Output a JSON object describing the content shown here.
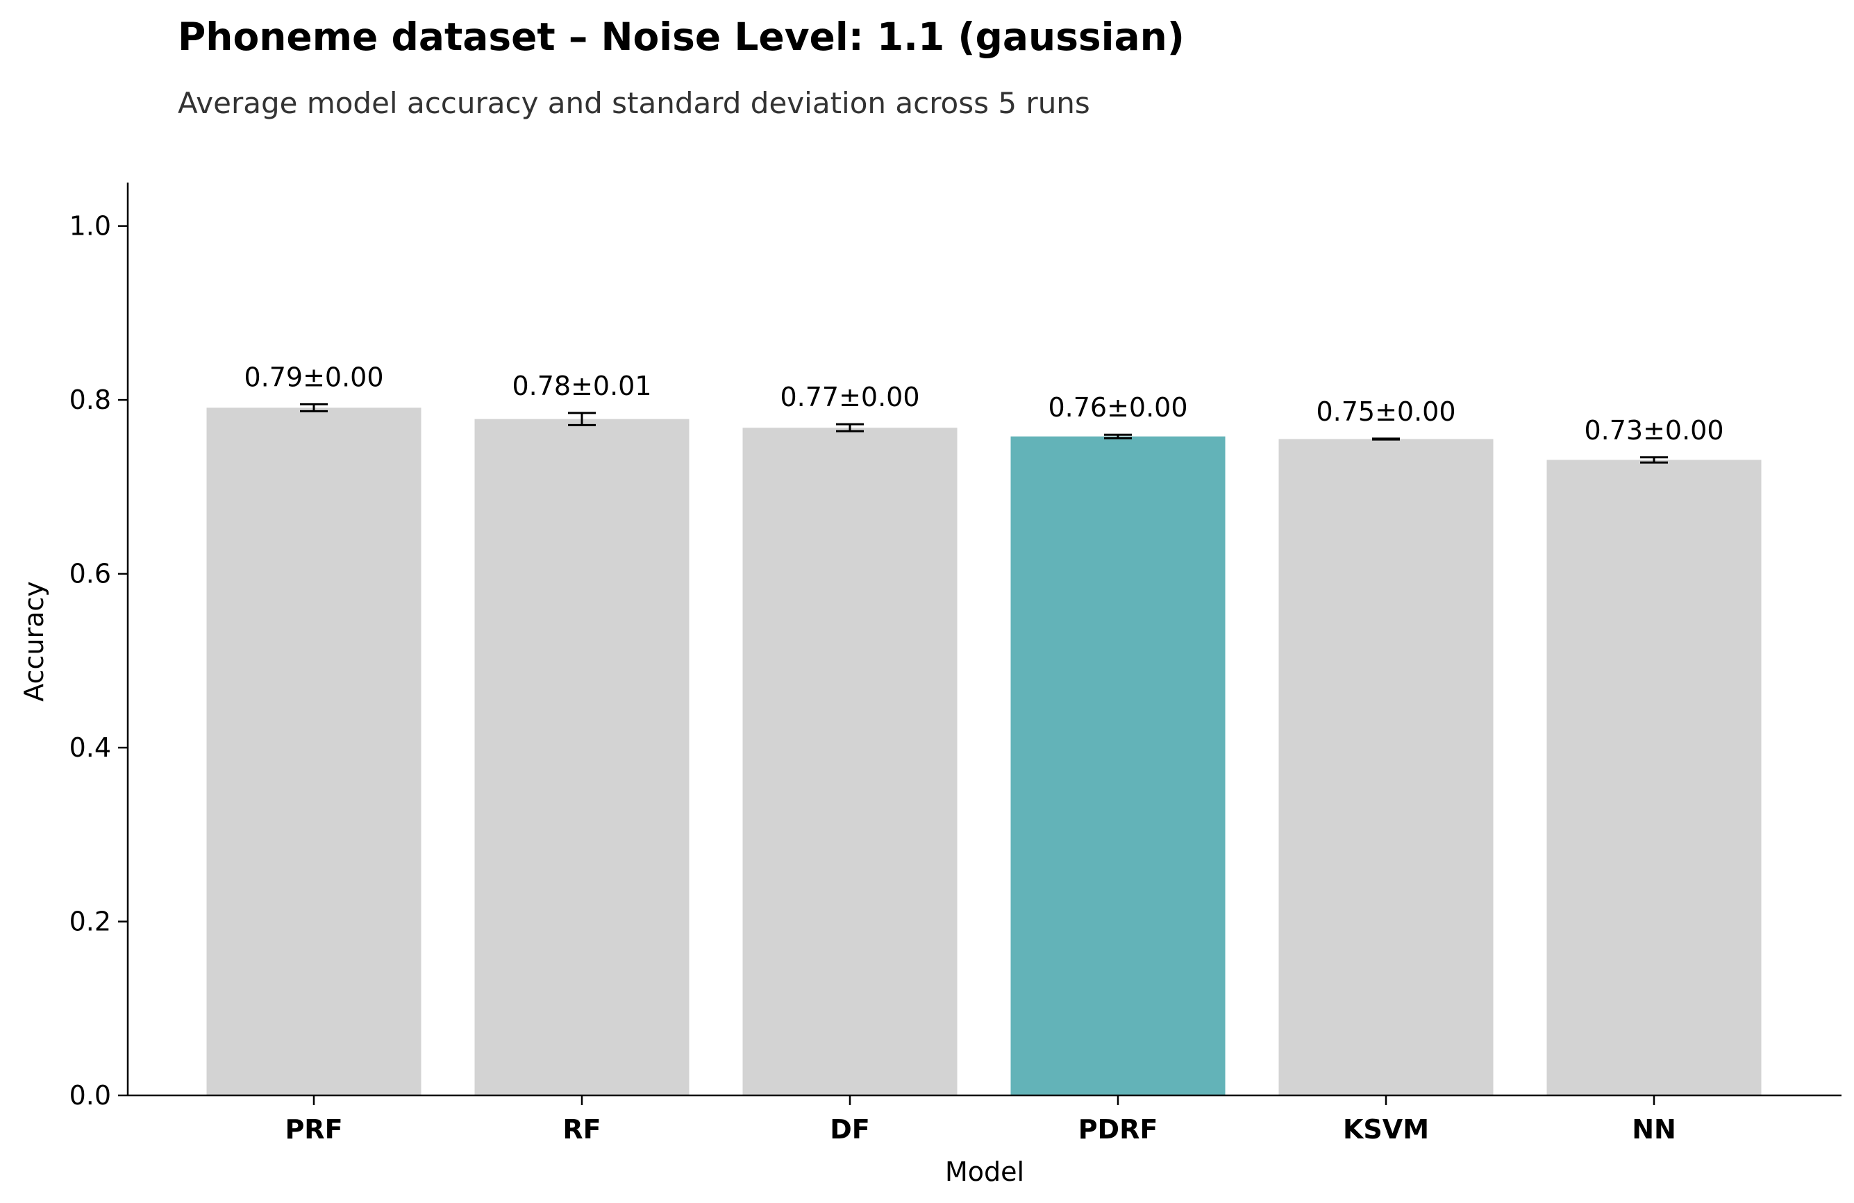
{
  "chart_data": {
    "type": "bar",
    "title": "Phoneme dataset – Noise Level: 1.1 (gaussian)",
    "subtitle": "Average model accuracy and standard deviation across 5 runs",
    "xlabel": "Model",
    "ylabel": "Accuracy",
    "ylim": [
      0,
      1.05
    ],
    "yticks": [
      "0.0",
      "0.2",
      "0.4",
      "0.6",
      "0.8",
      "1.0"
    ],
    "grid": false,
    "categories": [
      "PRF",
      "RF",
      "DF",
      "PDRF",
      "KSVM",
      "NN"
    ],
    "values": [
      0.791,
      0.778,
      0.768,
      0.758,
      0.755,
      0.731
    ],
    "errors": [
      0.004,
      0.007,
      0.004,
      0.002,
      0.0005,
      0.003
    ],
    "data_labels": [
      "0.79±0.00",
      "0.78±0.01",
      "0.77±0.00",
      "0.76±0.00",
      "0.75±0.00",
      "0.73±0.00"
    ],
    "highlight": "PDRF",
    "colors": {
      "bar": "#d3d3d3",
      "highlight": "#63b3b8",
      "axis": "#000000",
      "error": "#000000"
    }
  }
}
